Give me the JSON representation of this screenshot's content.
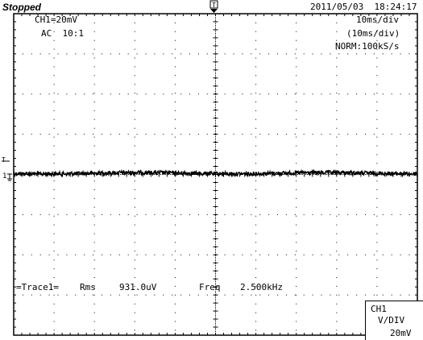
{
  "status": "Stopped",
  "datetime": "2011/05/03  18:24:17",
  "channel": {
    "scale": "CH1=20mV",
    "coupling": "AC  10:1"
  },
  "timebase": {
    "div": "10ms/div",
    "div_paren": "(10ms/div)",
    "mode": "NORM:100kS/s"
  },
  "markers": {
    "trigger_top": "T",
    "trigger_left": "T",
    "ch1_level": "1"
  },
  "measurement": {
    "label": "=Trace1=",
    "rms_label": "Rms",
    "rms_value": "931.0uV",
    "freq_label": "Freq",
    "freq_value": "2.500kHz"
  },
  "ch_box": {
    "ch": "CH1",
    "vdiv": "V/DIV",
    "value": "20mV"
  },
  "colors": {
    "background": "#ffffff",
    "trace": "#000000",
    "grid": "#000000"
  }
}
